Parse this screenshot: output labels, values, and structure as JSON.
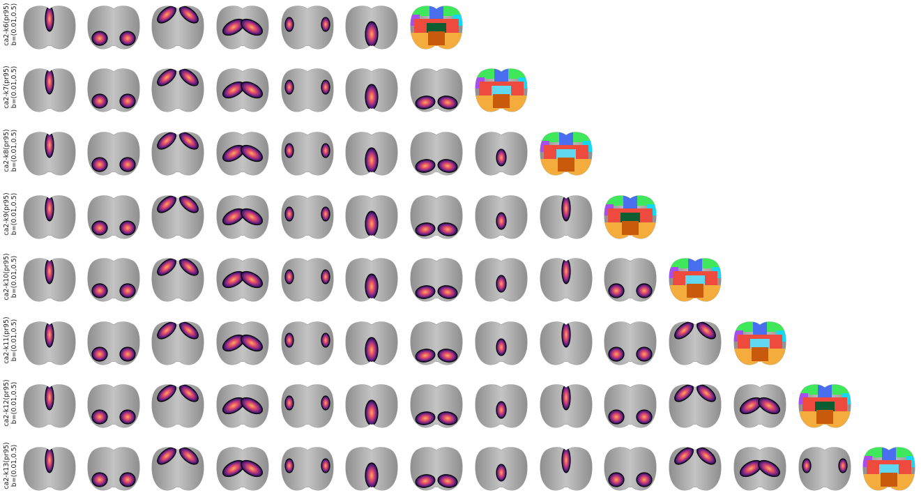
{
  "rows": [
    {
      "label_line1": "ca2-k6(pr95)",
      "label_line2": "b=(0.01,0.5)",
      "n_components": 6
    },
    {
      "label_line1": "ca2-k7(pr95)",
      "label_line2": "b=(0.01,0.5)",
      "n_components": 7
    },
    {
      "label_line1": "ca2-k8(pr95)",
      "label_line2": "b=(0.01,0.5)",
      "n_components": 8
    },
    {
      "label_line1": "ca2-k9(pr95)",
      "label_line2": "b=(0.01,0.5)",
      "n_components": 9
    },
    {
      "label_line1": "ca2-k10(pr95)",
      "label_line2": "b=(0.01,0.5)",
      "n_components": 10
    },
    {
      "label_line1": "ca2-k11(pr95)",
      "label_line2": "b=(0.01,0.5)",
      "n_components": 11
    },
    {
      "label_line1": "ca2-k12(pr95)",
      "label_line2": "b=(0.01,0.5)",
      "n_components": 12
    },
    {
      "label_line1": "ca2-k13(pr95)",
      "label_line2": "b=(0.01,0.5)",
      "n_components": 13
    }
  ],
  "colors": {
    "brain_gray": "#8e8e8e",
    "brain_light": "#c4c4c4",
    "heat_low": "#1b0c3d",
    "heat_mid1": "#5a1f7a",
    "heat_mid2": "#a6337d",
    "heat_mid3": "#e45563",
    "heat_high": "#fca86a",
    "parcel_colors": [
      "#3ee85a",
      "#4a6ef0",
      "#a64ef0",
      "#ef4a3e",
      "#16d8f2",
      "#f4ad3c",
      "#c95a0c",
      "#0c5e32",
      "#f03a8e",
      "#62d8f0"
    ]
  },
  "panels": {
    "component_kinds": [
      "midline-anterior",
      "posterior-lateral",
      "anterior-lateral",
      "central-bilateral",
      "lateral-patches",
      "midline-posterior",
      "posterior-dark",
      "central-small"
    ],
    "final_panel_kind": "parcellation-map"
  }
}
